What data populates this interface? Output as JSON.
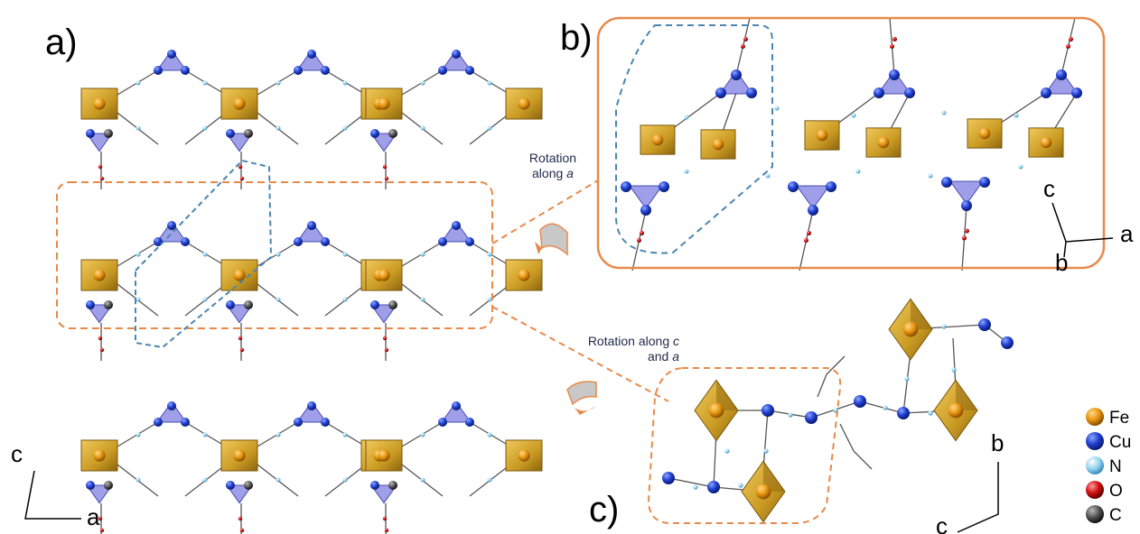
{
  "panels": {
    "a": {
      "label": "a)",
      "axis_vertical": "c",
      "axis_horizontal": "a"
    },
    "b": {
      "label": "b)",
      "axis_vertical": "c",
      "axis_horizontal": "a",
      "axis_depth": "b"
    },
    "c": {
      "label": "c)",
      "axis_vertical": "b",
      "axis_depth": "c"
    }
  },
  "annotations": {
    "rotation_a_line1": "Rotation",
    "rotation_a_line2_prefix": "along ",
    "rotation_a_axis": "a",
    "rotation_ca_line1_prefix": "Rotation along ",
    "rotation_ca_axis1": "c",
    "rotation_ca_line2_prefix": "and ",
    "rotation_ca_axis2": "a"
  },
  "legend": [
    {
      "label": "Fe",
      "color": "#e8950f"
    },
    {
      "label": "Cu",
      "color": "#1f3fd0"
    },
    {
      "label": "N",
      "color": "#8fd0ee"
    },
    {
      "label": "O",
      "color": "#d01010"
    },
    {
      "label": "C",
      "color": "#555555"
    }
  ],
  "colors": {
    "octahedron": "#c99a22",
    "tetrahedron": "#7d7fe0",
    "highlight_orange": "#e8894a",
    "highlight_blue": "#4a86b0"
  }
}
